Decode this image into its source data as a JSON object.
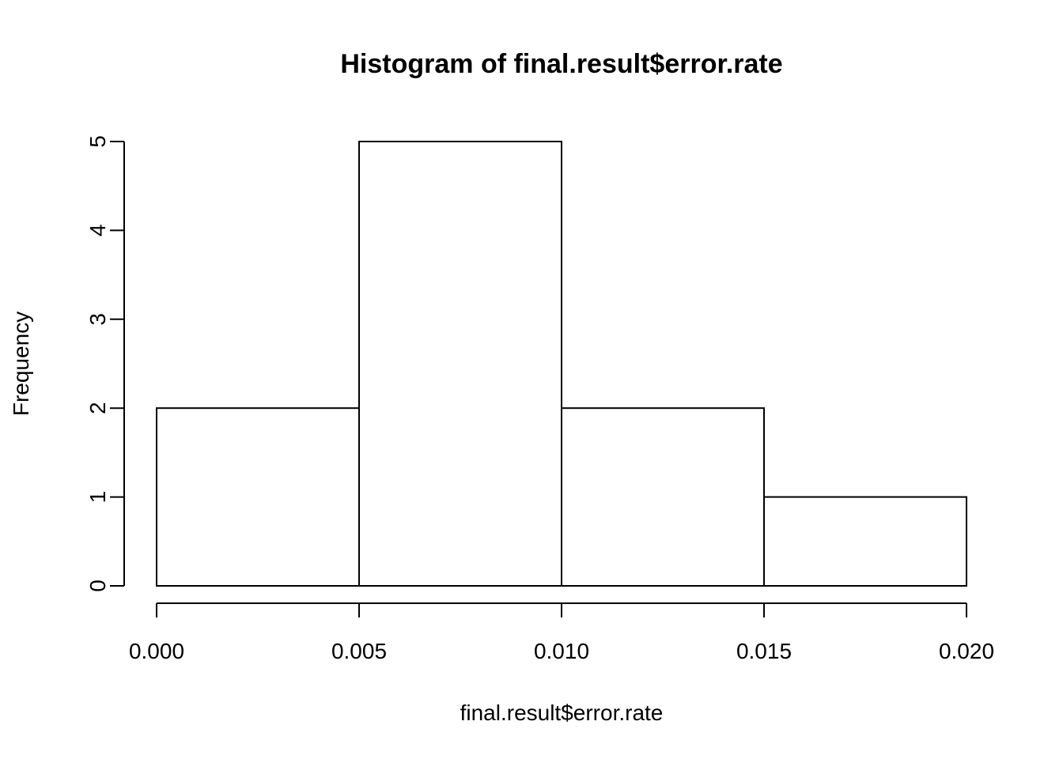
{
  "chart_data": {
    "type": "bar",
    "title": "Histogram of final.result$error.rate",
    "xlabel": "final.result$error.rate",
    "ylabel": "Frequency",
    "bins": [
      {
        "start": 0.0,
        "end": 0.005,
        "count": 2
      },
      {
        "start": 0.005,
        "end": 0.01,
        "count": 5
      },
      {
        "start": 0.01,
        "end": 0.015,
        "count": 2
      },
      {
        "start": 0.015,
        "end": 0.02,
        "count": 1
      }
    ],
    "xlim": [
      0.0,
      0.02
    ],
    "ylim": [
      0,
      5
    ],
    "x_ticks": [
      "0.000",
      "0.005",
      "0.010",
      "0.015",
      "0.020"
    ],
    "y_ticks": [
      "0",
      "1",
      "2",
      "3",
      "4",
      "5"
    ],
    "grid": false,
    "bar_fill": "#ffffff",
    "bar_stroke": "#000000"
  }
}
